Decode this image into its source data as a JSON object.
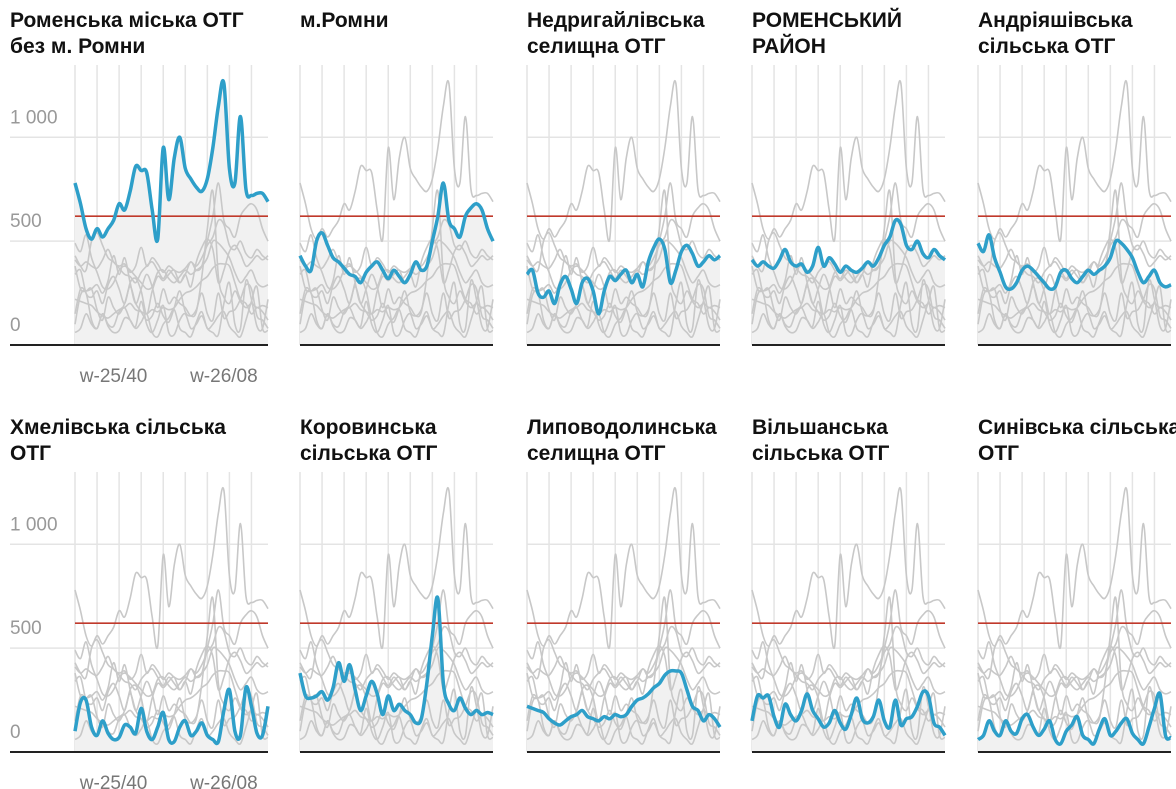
{
  "chart_data": {
    "type": "line",
    "categories": [
      null,
      null,
      null,
      null,
      null,
      null,
      null,
      "w-25/40",
      null,
      null,
      null,
      null,
      null,
      null,
      null,
      null,
      null,
      null,
      null,
      null,
      null,
      null,
      null,
      null,
      null,
      null,
      null,
      "w-26/08",
      null,
      null,
      null,
      null,
      null,
      null,
      null,
      null
    ],
    "xticks": [
      7,
      27
    ],
    "ylim": [
      0,
      1300
    ],
    "yticks": [
      0,
      500,
      {
        "value": 1000,
        "label": "1 000"
      }
    ],
    "grid": true,
    "threshold": 620,
    "threshold_color": "#c0392b",
    "highlight_color": "#2e9fc9",
    "context_color": "#c8c8c8",
    "series": [
      {
        "name": "Роменська міська ОТГ без м. Ромни",
        "values": [
          780,
          680,
          560,
          510,
          560,
          520,
          560,
          600,
          680,
          650,
          740,
          860,
          840,
          830,
          650,
          510,
          950,
          700,
          900,
          1000,
          850,
          800,
          760,
          740,
          800,
          950,
          1150,
          1260,
          850,
          780,
          1100,
          750,
          720,
          730,
          730,
          690
        ]
      },
      {
        "name": "м.Ромни",
        "values": [
          430,
          380,
          360,
          500,
          540,
          480,
          420,
          400,
          370,
          340,
          330,
          300,
          350,
          380,
          400,
          360,
          320,
          360,
          330,
          300,
          340,
          400,
          360,
          380,
          500,
          620,
          780,
          600,
          560,
          520,
          620,
          660,
          680,
          650,
          560,
          500
        ]
      },
      {
        "name": "Недригайлівська селищна ОТГ",
        "values": [
          340,
          360,
          250,
          230,
          260,
          200,
          290,
          330,
          270,
          200,
          300,
          320,
          260,
          150,
          260,
          330,
          310,
          340,
          360,
          300,
          340,
          280,
          400,
          470,
          510,
          460,
          300,
          360,
          450,
          480,
          440,
          380,
          400,
          430,
          410,
          430
        ]
      },
      {
        "name": "РОМЕНСЬКИЙ РАЙОН",
        "values": [
          410,
          380,
          400,
          380,
          370,
          410,
          460,
          400,
          380,
          390,
          350,
          380,
          470,
          380,
          420,
          390,
          350,
          380,
          360,
          350,
          370,
          400,
          380,
          420,
          480,
          520,
          600,
          580,
          480,
          460,
          500,
          440,
          420,
          460,
          430,
          410
        ]
      },
      {
        "name": "Андріяшівська сільська ОТГ",
        "values": [
          490,
          450,
          530,
          420,
          350,
          280,
          270,
          300,
          360,
          380,
          360,
          330,
          300,
          270,
          280,
          350,
          360,
          320,
          300,
          330,
          360,
          340,
          360,
          380,
          420,
          500,
          490,
          460,
          420,
          350,
          300,
          330,
          360,
          300,
          280,
          290
        ]
      },
      {
        "name": "Хмелівська сільська ОТГ",
        "values": [
          100,
          240,
          250,
          120,
          80,
          150,
          90,
          60,
          70,
          130,
          120,
          90,
          210,
          100,
          60,
          120,
          190,
          60,
          50,
          120,
          150,
          80,
          100,
          140,
          80,
          60,
          50,
          200,
          300,
          100,
          80,
          310,
          220,
          90,
          80,
          220
        ]
      },
      {
        "name": "Коровинська сільська ОТГ",
        "values": [
          380,
          270,
          260,
          270,
          290,
          250,
          310,
          430,
          340,
          420,
          300,
          200,
          270,
          340,
          280,
          180,
          270,
          200,
          230,
          200,
          180,
          140,
          160,
          330,
          560,
          740,
          330,
          230,
          200,
          260,
          210,
          180,
          200,
          180,
          190,
          180
        ]
      },
      {
        "name": "Липоводолинська селищна ОТГ",
        "values": [
          220,
          210,
          200,
          190,
          160,
          140,
          130,
          150,
          170,
          180,
          200,
          170,
          160,
          150,
          170,
          160,
          180,
          170,
          180,
          220,
          250,
          260,
          280,
          310,
          330,
          370,
          390,
          390,
          380,
          300,
          220,
          200,
          150,
          180,
          160,
          120
        ]
      },
      {
        "name": "Вільшанська сільська ОТГ",
        "values": [
          150,
          270,
          260,
          270,
          170,
          120,
          230,
          180,
          150,
          200,
          280,
          200,
          160,
          120,
          140,
          200,
          140,
          110,
          180,
          260,
          160,
          140,
          170,
          250,
          150,
          120,
          250,
          130,
          160,
          170,
          220,
          290,
          270,
          140,
          120,
          80
        ]
      },
      {
        "name": "Синівська сільська ОТГ",
        "values": [
          60,
          80,
          150,
          100,
          80,
          150,
          100,
          90,
          160,
          180,
          120,
          80,
          110,
          150,
          60,
          40,
          100,
          130,
          170,
          80,
          60,
          40,
          110,
          160,
          80,
          100,
          140,
          160,
          90,
          60,
          40,
          120,
          210,
          280,
          80,
          70
        ]
      }
    ]
  }
}
